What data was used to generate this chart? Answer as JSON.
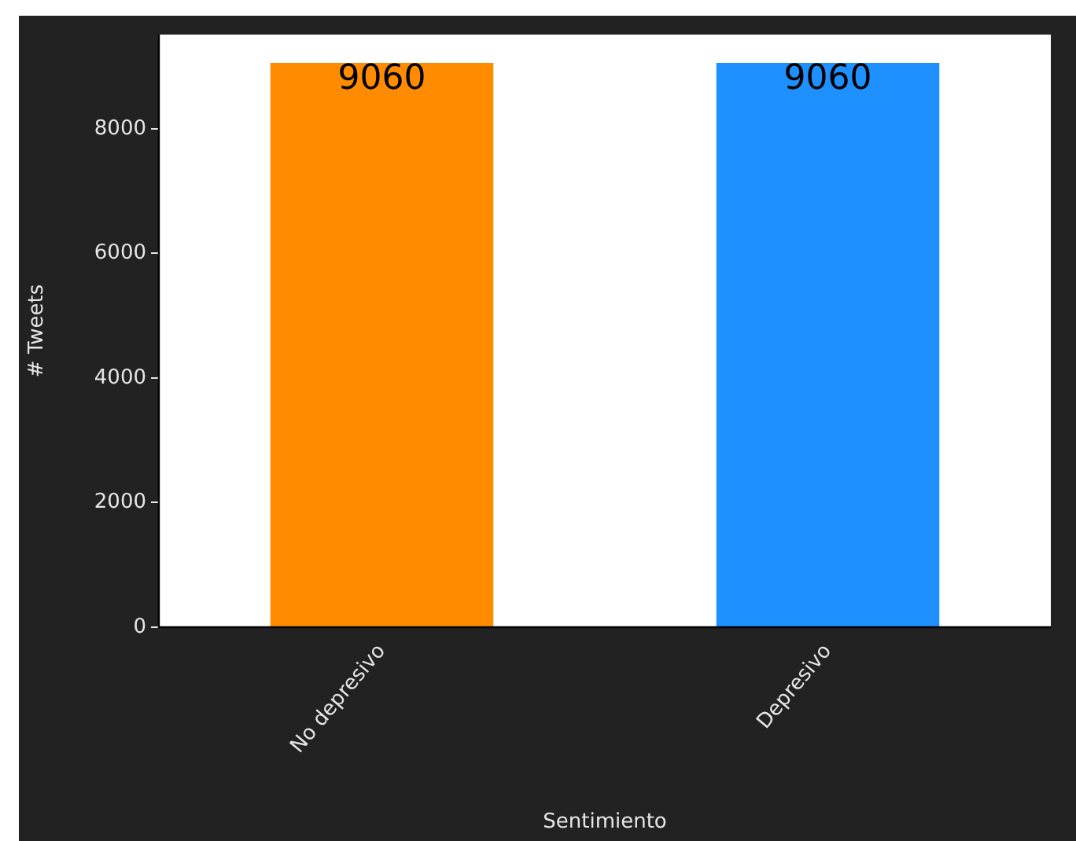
{
  "chart_data": {
    "type": "bar",
    "xlabel": "Sentimiento",
    "ylabel": "# Tweets",
    "categories": [
      "No depresivo",
      "Depresivo"
    ],
    "values": [
      9060,
      9060
    ],
    "colors": [
      "#ff8c00",
      "#1e90ff"
    ],
    "ylim": [
      0,
      9513
    ],
    "yticks": [
      0,
      2000,
      4000,
      6000,
      8000
    ],
    "data_labels": true,
    "grid": false,
    "legend": false
  }
}
